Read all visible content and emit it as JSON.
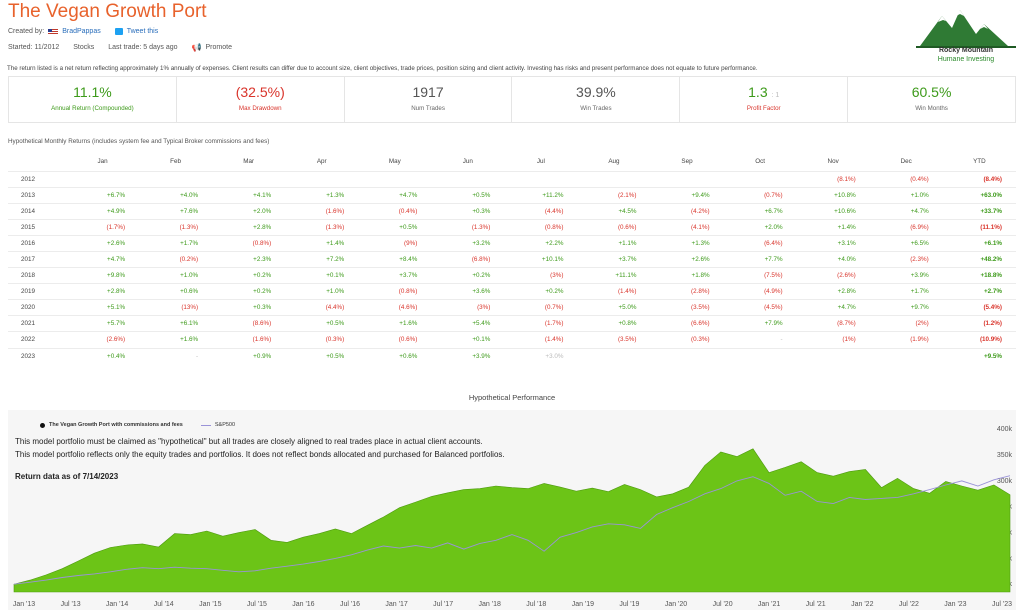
{
  "header": {
    "title": "The Vegan Growth Port",
    "created_by_label": "Created by:",
    "author": "BradPappas",
    "tweet": "Tweet this",
    "started": "Started: 11/2012",
    "asset_class": "Stocks",
    "last_trade": "Last trade: 5 days ago",
    "promote": "Promote"
  },
  "logo": {
    "name": "Rocky Mountain",
    "subtitle": "Humane Investing",
    "icon": "mountain-logo-icon"
  },
  "disclaimer": "The return listed is a net return reflecting approximately 1% annually of expenses. Client results can differ due to account size, client objectives, trade prices, position sizing and client activity. Investing has risks and present performance does not equate to future performance.",
  "stats": [
    {
      "value": "11.1%",
      "label": "Annual Return (Compounded)",
      "tone": "green"
    },
    {
      "value": "(32.5%)",
      "label": "Max Drawdown",
      "tone": "red"
    },
    {
      "value": "1917",
      "label": "Num Trades",
      "tone": "gray"
    },
    {
      "value": "39.9%",
      "label": "Win Trades",
      "tone": "gray"
    },
    {
      "value": "1.3",
      "sub": ": 1",
      "label": "Profit Factor",
      "tone": "green-red"
    },
    {
      "value": "60.5%",
      "label": "Win Months",
      "tone": "green"
    }
  ],
  "returns": {
    "title": "Hypothetical Monthly Returns (includes system fee and Typical Broker commissions and fees)",
    "columns": [
      "",
      "Jan",
      "Feb",
      "Mar",
      "Apr",
      "May",
      "Jun",
      "Jul",
      "Aug",
      "Sep",
      "Oct",
      "Nov",
      "Dec",
      "YTD"
    ],
    "rows": [
      [
        "2012",
        "",
        "",
        "",
        "",
        "",
        "",
        "",
        "",
        "",
        "",
        "(8.1%)",
        "(0.4%)",
        "(8.4%)"
      ],
      [
        "2013",
        "+6.7%",
        "+4.0%",
        "+4.1%",
        "+1.3%",
        "+4.7%",
        "+0.5%",
        "+11.2%",
        "(2.1%)",
        "+9.4%",
        "(0.7%)",
        "+10.8%",
        "+1.0%",
        "+63.0%"
      ],
      [
        "2014",
        "+4.9%",
        "+7.6%",
        "+2.0%",
        "(1.6%)",
        "(0.4%)",
        "+0.3%",
        "(4.4%)",
        "+4.5%",
        "(4.2%)",
        "+6.7%",
        "+10.6%",
        "+4.7%",
        "+33.7%"
      ],
      [
        "2015",
        "(1.7%)",
        "(1.3%)",
        "+2.8%",
        "(1.3%)",
        "+0.5%",
        "(1.3%)",
        "(0.8%)",
        "(0.6%)",
        "(4.1%)",
        "+2.0%",
        "+1.4%",
        "(6.9%)",
        "(11.1%)"
      ],
      [
        "2016",
        "+2.6%",
        "+1.7%",
        "(0.8%)",
        "+1.4%",
        "(9%)",
        "+3.2%",
        "+2.2%",
        "+1.1%",
        "+1.3%",
        "(6.4%)",
        "+3.1%",
        "+6.5%",
        "+6.1%"
      ],
      [
        "2017",
        "+4.7%",
        "(0.2%)",
        "+2.3%",
        "+7.2%",
        "+8.4%",
        "(6.8%)",
        "+10.1%",
        "+3.7%",
        "+2.6%",
        "+7.7%",
        "+4.0%",
        "(2.3%)",
        "+48.2%"
      ],
      [
        "2018",
        "+9.8%",
        "+1.0%",
        "+0.2%",
        "+0.1%",
        "+3.7%",
        "+0.2%",
        "(3%)",
        "+11.1%",
        "+1.8%",
        "(7.5%)",
        "(2.6%)",
        "+3.9%",
        "+18.8%"
      ],
      [
        "2019",
        "+2.8%",
        "+0.6%",
        "+0.2%",
        "+1.0%",
        "(0.8%)",
        "+3.6%",
        "+0.2%",
        "(1.4%)",
        "(2.8%)",
        "(4.9%)",
        "+2.8%",
        "+1.7%",
        "+2.7%"
      ],
      [
        "2020",
        "+5.1%",
        "(13%)",
        "+0.3%",
        "(4.4%)",
        "(4.6%)",
        "(3%)",
        "(0.7%)",
        "+5.0%",
        "(3.5%)",
        "(4.5%)",
        "+4.7%",
        "+9.7%",
        "(5.4%)"
      ],
      [
        "2021",
        "+5.7%",
        "+6.1%",
        "(8.6%)",
        "+0.5%",
        "+1.6%",
        "+5.4%",
        "(1.7%)",
        "+0.8%",
        "(6.6%)",
        "+7.9%",
        "(8.7%)",
        "(2%)",
        "(1.2%)"
      ],
      [
        "2022",
        "(2.6%)",
        "+1.6%",
        "(1.6%)",
        "(0.3%)",
        "(0.6%)",
        "+0.1%",
        "(1.4%)",
        "(3.5%)",
        "(0.3%)",
        "-",
        "(1%)",
        "(1.9%)",
        "(10.9%)"
      ],
      [
        "2023",
        "+0.4%",
        "-",
        "+0.9%",
        "+0.5%",
        "+0.6%",
        "+3.9%",
        "+3.0%",
        "",
        "",
        "",
        "",
        "",
        "+9.5%"
      ]
    ]
  },
  "performance": {
    "title": "Hypothetical Performance",
    "note1": "This model portfolio must be claimed as \"hypothetical\" but all trades are closely aligned to real trades place in actual client accounts.",
    "note2": "This model portfolio reflects only the equity trades and portfolios.  It does not reflect bonds allocated and purchased for Balanced portfolios.",
    "note3": "Return data as of 7/14/2023",
    "legend": {
      "portfolio": "The Vegan Growth Port with commissions and fees",
      "benchmark": "S&P500"
    },
    "colors": {
      "portfolio": "#6cc417",
      "benchmark": "#9a93d8"
    }
  },
  "chart_data": {
    "type": "area",
    "x_ticks": [
      "Jan '13",
      "Jul '13",
      "Jan '14",
      "Jul '14",
      "Jan '15",
      "Jul '15",
      "Jan '16",
      "Jul '16",
      "Jan '17",
      "Jul '17",
      "Jan '18",
      "Jul '18",
      "Jan '19",
      "Jul '19",
      "Jan '20",
      "Jul '20",
      "Jan '21",
      "Jul '21",
      "Jan '22",
      "Jul '22",
      "Jan '23",
      "Jul '23"
    ],
    "y_ticks": [
      "100k",
      "150k",
      "200k",
      "250k",
      "300k",
      "350k",
      "400k"
    ],
    "ylim": [
      85000,
      410000
    ],
    "series": [
      {
        "name": "The Vegan Growth Port with commissions and fees",
        "values": [
          100000,
          108000,
          118000,
          130000,
          145000,
          160000,
          171000,
          176000,
          178000,
          172000,
          198000,
          196000,
          203000,
          193000,
          200000,
          206000,
          185000,
          181000,
          191000,
          198000,
          207000,
          198000,
          214000,
          230000,
          248000,
          259000,
          270000,
          277000,
          283000,
          285000,
          290000,
          287000,
          285000,
          295000,
          288000,
          280000,
          286000,
          279000,
          293000,
          283000,
          269000,
          275000,
          288000,
          330000,
          356000,
          347000,
          362000,
          316000,
          326000,
          337000,
          316000,
          309000,
          318000,
          322000,
          287000,
          305000,
          285000,
          276000,
          299000,
          290000,
          282000,
          292000,
          273000
        ]
      },
      {
        "name": "S&P500",
        "values": [
          100000,
          104000,
          108000,
          113000,
          117000,
          120000,
          124000,
          129000,
          132000,
          130000,
          133000,
          131000,
          130000,
          127000,
          124000,
          126000,
          131000,
          135000,
          139000,
          144000,
          150000,
          157000,
          166000,
          174000,
          170000,
          175000,
          170000,
          180000,
          168000,
          179000,
          185000,
          196000,
          185000,
          164000,
          191000,
          200000,
          211000,
          217000,
          215000,
          208000,
          235000,
          248000,
          260000,
          275000,
          285000,
          300000,
          308000,
          295000,
          272000,
          280000,
          260000,
          256000,
          268000,
          264000,
          266000,
          268000,
          275000,
          283000,
          292000,
          300000,
          290000,
          302000,
          310000
        ]
      }
    ]
  }
}
